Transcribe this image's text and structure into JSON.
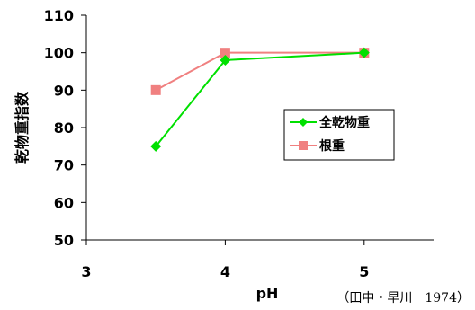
{
  "chart_data": {
    "type": "line",
    "xlabel": "pH",
    "ylabel": "乾物重指数",
    "xlim": [
      3,
      5.5
    ],
    "ylim": [
      50,
      110
    ],
    "xticks": [
      3,
      4,
      5
    ],
    "yticks": [
      50,
      60,
      70,
      80,
      90,
      100,
      110
    ],
    "grid": false,
    "legend_position": "right",
    "series": [
      {
        "name": "全乾物重",
        "color": "#00e000",
        "marker": "diamond",
        "x": [
          3.5,
          4,
          5
        ],
        "y": [
          75,
          98,
          100
        ]
      },
      {
        "name": "根重",
        "color": "#f08080",
        "marker": "square",
        "x": [
          3.5,
          4,
          5
        ],
        "y": [
          90,
          100,
          100
        ]
      }
    ],
    "annotation": "（田中・早川　1974）"
  }
}
